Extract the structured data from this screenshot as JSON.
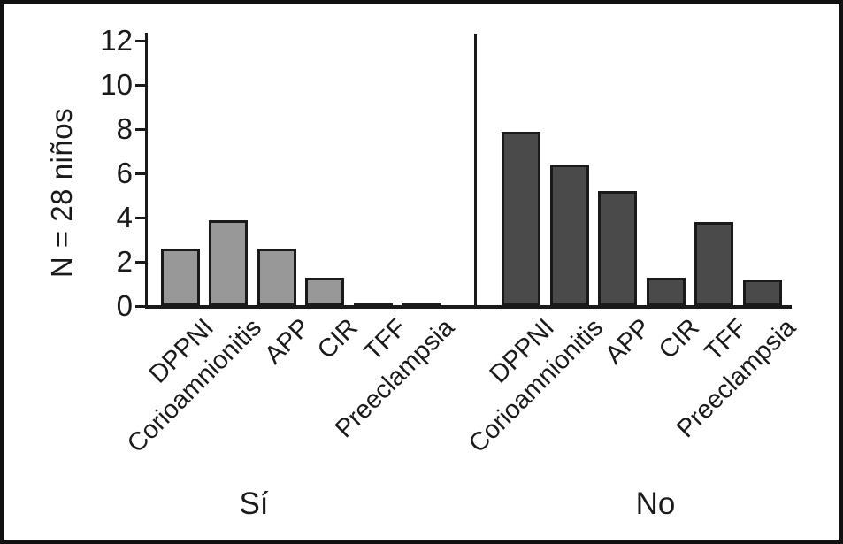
{
  "chart_data": {
    "type": "bar",
    "title": "",
    "ylabel": "N = 28 niños",
    "xlabel": "",
    "ylim": [
      0,
      12
    ],
    "yticks": [
      0,
      2,
      4,
      6,
      8,
      10,
      12
    ],
    "categories": [
      "DPPNI",
      "Corioamnionitis",
      "APP",
      "CIR",
      "TFF",
      "Preeclampsia"
    ],
    "series": [
      {
        "name": "Sí",
        "color": "#989898",
        "values": [
          2.6,
          3.9,
          2.6,
          1.3,
          0.1,
          0.1
        ]
      },
      {
        "name": "No",
        "color": "#4a4a4a",
        "values": [
          7.9,
          6.4,
          5.2,
          1.3,
          3.8,
          1.2
        ]
      }
    ],
    "grid": false,
    "legend": "none",
    "panel_divider": true,
    "x_tick_label_rotation_deg": 45,
    "axis_color": "#1a1a1a"
  }
}
